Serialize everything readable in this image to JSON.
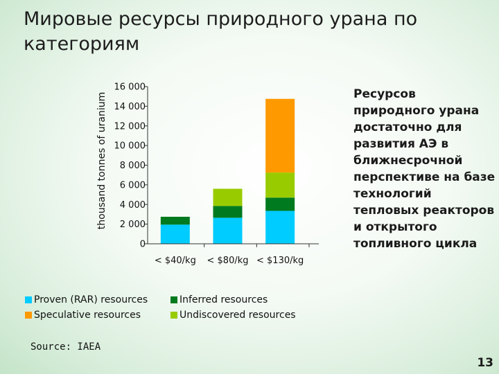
{
  "title": "Мировые ресурсы природного  урана по категориям",
  "side_note": "Ресурсов природного урана достаточно для развития АЭ в ближнесрочной перспективе на базе технологий тепловых реакторов и открытого топливного цикла",
  "source": "Source: IAEA",
  "page_number": "13",
  "chart_data": {
    "type": "bar",
    "stacked": true,
    "categories": [
      "< $40/kg",
      "< $80/kg",
      "< $130/kg"
    ],
    "ylabel": "thousand tonnes of uranium",
    "ylim": [
      0,
      16000
    ],
    "yticks": [
      0,
      2000,
      4000,
      6000,
      8000,
      10000,
      12000,
      14000,
      16000
    ],
    "ytick_labels": [
      "0",
      "2 000",
      "4 000",
      "6 000",
      "8 000",
      "10 000",
      "12 000",
      "14 000",
      "16 000"
    ],
    "legend_position": "bottom",
    "series": [
      {
        "name": "Proven (RAR) resources",
        "color": "#00ccff",
        "values": [
          1950,
          2650,
          3350
        ]
      },
      {
        "name": "Inferred resources",
        "color": "#007a1f",
        "values": [
          800,
          1200,
          1350
        ]
      },
      {
        "name": "Undiscovered resources",
        "color": "#99cc00",
        "values": [
          0,
          1750,
          2550
        ]
      },
      {
        "name": "Speculative resources",
        "color": "#ff9900",
        "values": [
          0,
          0,
          7500
        ]
      }
    ],
    "legend_order": [
      0,
      1,
      3,
      2
    ]
  }
}
